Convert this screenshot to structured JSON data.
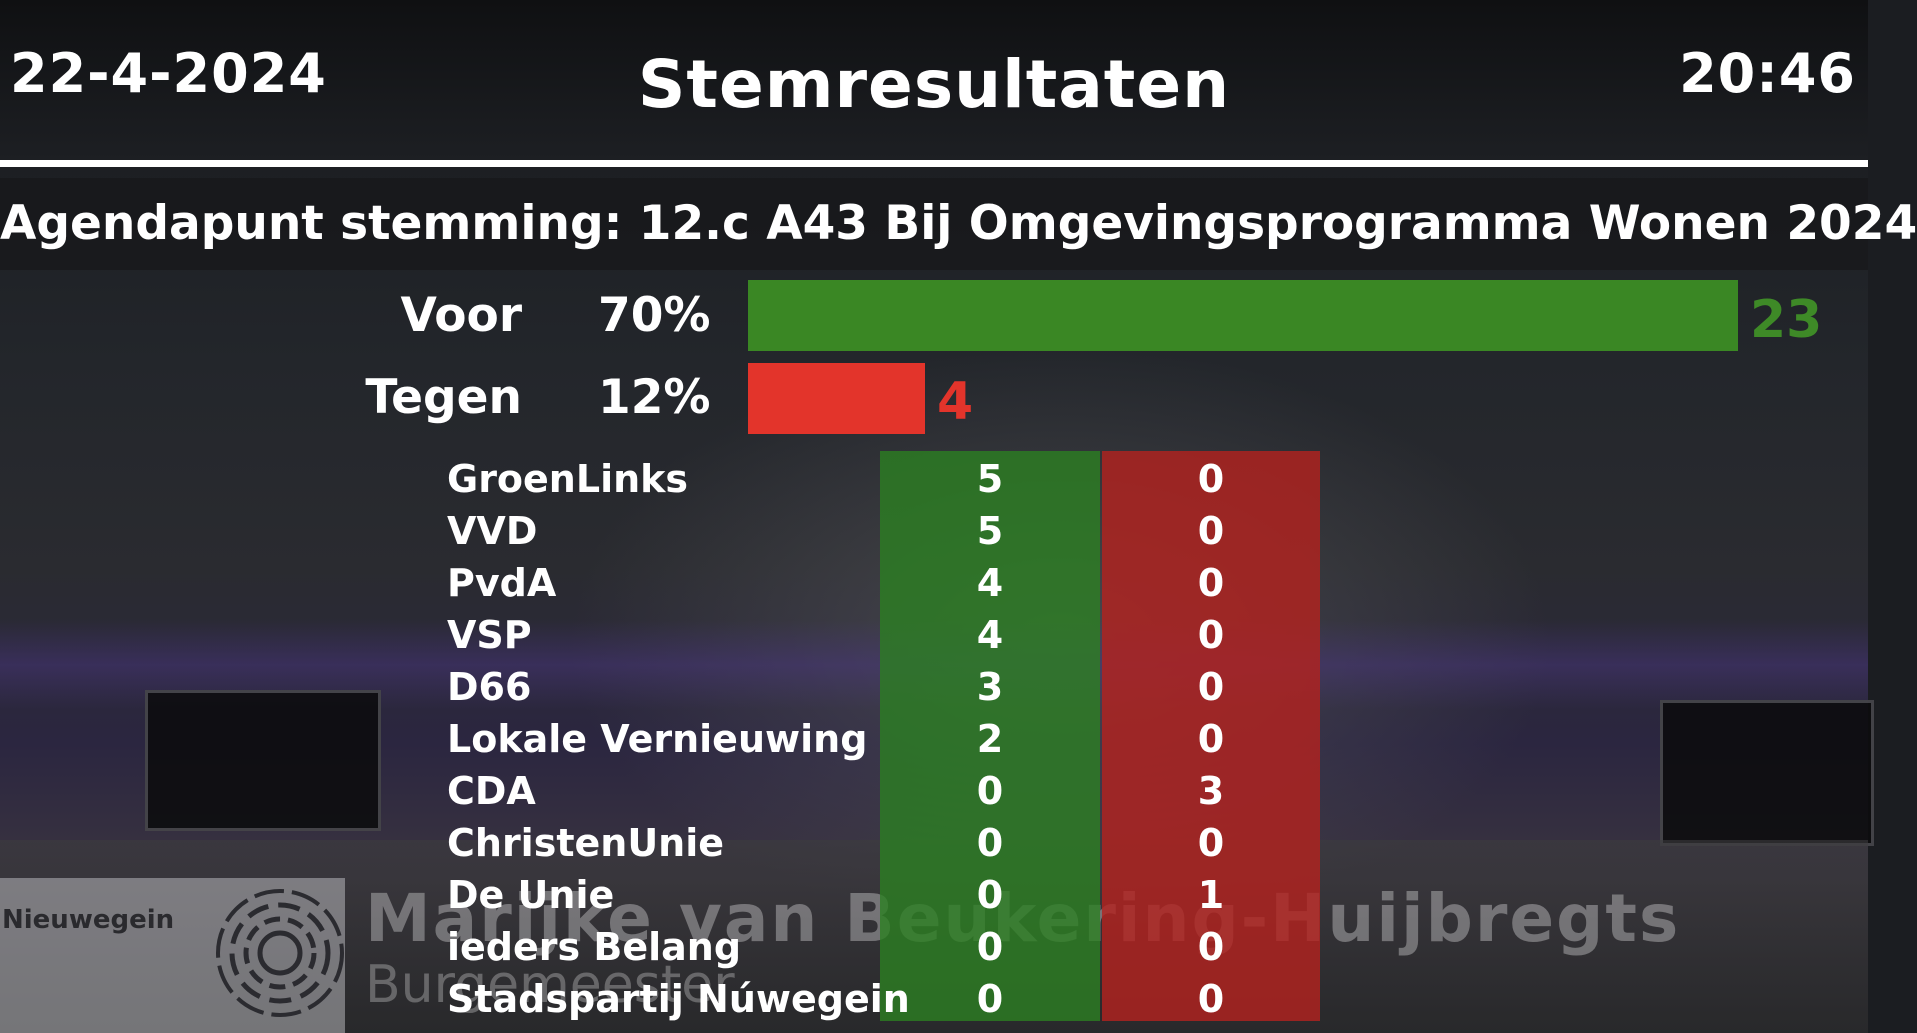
{
  "header": {
    "date": "22-4-2024",
    "title": "Stemresultaten",
    "time": "20:46"
  },
  "agenda": {
    "text": "Agendapunt stemming: 12.c A43 Bij Omgevingsprogramma Wonen 2024"
  },
  "summary": {
    "voor": {
      "label": "Voor",
      "percent": "70%",
      "count": "23",
      "color": "#3a8724"
    },
    "tegen": {
      "label": "Tegen",
      "percent": "12%",
      "count": "4",
      "color": "#e3342b"
    }
  },
  "parties": [
    {
      "name": "GroenLinks",
      "voor": "5",
      "tegen": "0"
    },
    {
      "name": "VVD",
      "voor": "5",
      "tegen": "0"
    },
    {
      "name": "PvdA",
      "voor": "4",
      "tegen": "0"
    },
    {
      "name": "VSP",
      "voor": "4",
      "tegen": "0"
    },
    {
      "name": "D66",
      "voor": "3",
      "tegen": "0"
    },
    {
      "name": "Lokale Vernieuwing",
      "voor": "2",
      "tegen": "0"
    },
    {
      "name": "CDA",
      "voor": "0",
      "tegen": "3"
    },
    {
      "name": "ChristenUnie",
      "voor": "0",
      "tegen": "0"
    },
    {
      "name": "De Unie",
      "voor": "0",
      "tegen": "1"
    },
    {
      "name": "ieders Belang",
      "voor": "0",
      "tegen": "0"
    },
    {
      "name": "Stadspartij Núwegein",
      "voor": "0",
      "tegen": "0"
    }
  ],
  "lower_third": {
    "brand": "Nieuwegein",
    "name": "Marijke van Beukering-Huijbregts",
    "role": "Burgemeester"
  }
}
